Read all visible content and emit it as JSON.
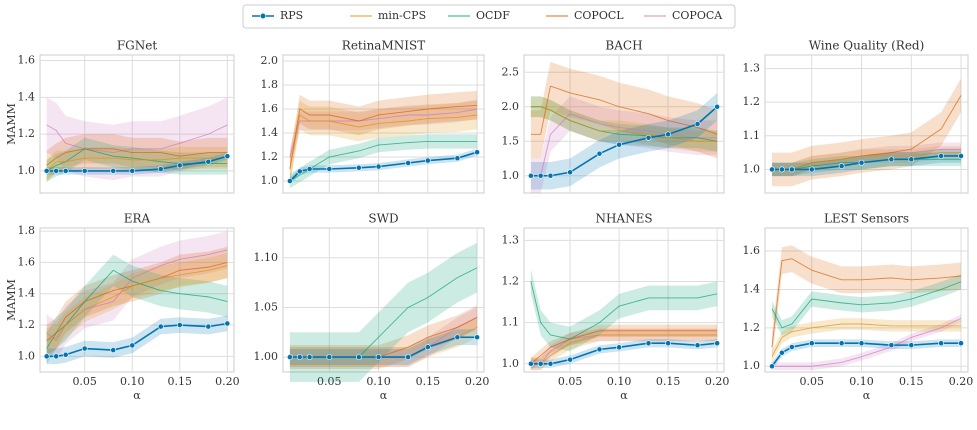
{
  "chart_data": [
    {
      "type": "line",
      "title": "FGNet",
      "ylabel": "MAMM",
      "x": [
        0.01,
        0.02,
        0.03,
        0.05,
        0.08,
        0.1,
        0.13,
        0.15,
        0.18,
        0.2
      ],
      "xlim": [
        0.003,
        0.207
      ],
      "xticks": [
        0.05,
        {
          "value": 0.1,
          "label": "0.10"
        },
        0.15,
        {
          "value": 0.2,
          "label": "0.20"
        }
      ],
      "ylim": [
        0.88,
        1.63
      ],
      "yticks": [
        {
          "value": 1,
          "label": "1.0"
        },
        1.2,
        1.4,
        1.6
      ],
      "grid": true,
      "series": [
        {
          "name": "RPS",
          "color": "#0173b2",
          "values": [
            1,
            1,
            1,
            1,
            1,
            1,
            1.01,
            1.03,
            1.05,
            1.08
          ],
          "error": 0.02
        },
        {
          "name": "min-CPS",
          "color": "#de8f05",
          "values": [
            1,
            1.05,
            1.05,
            1.07,
            1.07,
            1.06,
            1.06,
            1.07,
            1.07,
            1.07
          ],
          "error": 0.06
        },
        {
          "name": "OCDF",
          "color": "#029e73",
          "values": [
            1,
            1.03,
            1.05,
            1.12,
            1.08,
            1.07,
            1.05,
            1.04,
            1.04,
            1.04
          ],
          "error": 0.06
        },
        {
          "name": "COPOCL",
          "color": "#d55e00",
          "values": [
            1.03,
            1.07,
            1.1,
            1.12,
            1.12,
            1.1,
            1.1,
            1.08,
            1.1,
            1.1
          ],
          "error": 0.08
        },
        {
          "name": "COPOCA",
          "color": "#cc78bc",
          "values": [
            1.25,
            1.22,
            1.15,
            1.12,
            1.1,
            1.12,
            1.12,
            1.15,
            1.2,
            1.25
          ],
          "error": 0.15
        }
      ]
    },
    {
      "type": "line",
      "title": "RetinaMNIST",
      "x": [
        0.01,
        0.02,
        0.03,
        0.05,
        0.08,
        0.1,
        0.13,
        0.15,
        0.18,
        0.2
      ],
      "xlim": [
        0.003,
        0.207
      ],
      "xticks": [
        0.05,
        {
          "value": 0.1,
          "label": "0.10"
        },
        0.15,
        {
          "value": 0.2,
          "label": "0.20"
        }
      ],
      "ylim": [
        0.9,
        2.05
      ],
      "yticks": [
        {
          "value": 1,
          "label": "1.0"
        },
        1.2,
        1.4,
        1.6,
        1.8,
        {
          "value": 2,
          "label": "2.0"
        }
      ],
      "grid": true,
      "series": [
        {
          "name": "RPS",
          "color": "#0173b2",
          "values": [
            1,
            1.08,
            1.1,
            1.1,
            1.11,
            1.12,
            1.15,
            1.17,
            1.19,
            1.24
          ],
          "error": 0.03
        },
        {
          "name": "min-CPS",
          "color": "#de8f05",
          "values": [
            1.1,
            1.55,
            1.5,
            1.5,
            1.45,
            1.48,
            1.5,
            1.52,
            1.53,
            1.55
          ],
          "error": 0.12
        },
        {
          "name": "OCDF",
          "color": "#029e73",
          "values": [
            1,
            1.05,
            1.1,
            1.2,
            1.25,
            1.3,
            1.32,
            1.33,
            1.33,
            1.33
          ],
          "error": 0.06
        },
        {
          "name": "COPOCL",
          "color": "#d55e00",
          "values": [
            1.1,
            1.6,
            1.55,
            1.55,
            1.5,
            1.55,
            1.58,
            1.6,
            1.62,
            1.63
          ],
          "error": 0.12
        },
        {
          "name": "COPOCA",
          "color": "#cc78bc",
          "values": [
            1.2,
            1.5,
            1.5,
            1.5,
            1.5,
            1.52,
            1.55,
            1.55,
            1.57,
            1.6
          ],
          "error": 0.08
        }
      ]
    },
    {
      "type": "line",
      "title": "BACH",
      "x": [
        0.01,
        0.02,
        0.03,
        0.05,
        0.08,
        0.1,
        0.13,
        0.15,
        0.18,
        0.2
      ],
      "xlim": [
        0.003,
        0.207
      ],
      "xticks": [
        0.05,
        {
          "value": 0.1,
          "label": "0.10"
        },
        0.15,
        {
          "value": 0.2,
          "label": "0.20"
        }
      ],
      "ylim": [
        0.75,
        2.75
      ],
      "yticks": [
        {
          "value": 1,
          "label": "1.0"
        },
        1.5,
        {
          "value": 2,
          "label": "2.0"
        },
        2.5
      ],
      "grid": true,
      "series": [
        {
          "name": "RPS",
          "color": "#0173b2",
          "values": [
            1,
            1,
            1,
            1.05,
            1.32,
            1.45,
            1.55,
            1.6,
            1.75,
            2
          ],
          "error": 0.2
        },
        {
          "name": "min-CPS",
          "color": "#de8f05",
          "values": [
            2,
            2,
            1.95,
            1.8,
            1.65,
            1.65,
            1.6,
            1.55,
            1.5,
            1.5
          ],
          "error": 0.15
        },
        {
          "name": "OCDF",
          "color": "#029e73",
          "values": [
            2,
            2,
            1.95,
            1.8,
            1.65,
            1.6,
            1.58,
            1.55,
            1.55,
            1.5
          ],
          "error": 0.15
        },
        {
          "name": "COPOCL",
          "color": "#d55e00",
          "values": [
            1.6,
            1.6,
            2.3,
            2.2,
            2.1,
            2,
            1.9,
            1.8,
            1.7,
            1.6
          ],
          "error": 0.35
        },
        {
          "name": "COPOCA",
          "color": "#cc78bc",
          "values": [
            1,
            1,
            1.6,
            1.9,
            1.75,
            1.7,
            1.65,
            1.6,
            1.55,
            1.55
          ],
          "error": 0.25
        }
      ]
    },
    {
      "type": "line",
      "title": "Wine Quality (Red)",
      "x": [
        0.01,
        0.02,
        0.03,
        0.05,
        0.08,
        0.1,
        0.13,
        0.15,
        0.18,
        0.2
      ],
      "xlim": [
        0.003,
        0.207
      ],
      "xticks": [
        0.05,
        {
          "value": 0.1,
          "label": "0.10"
        },
        0.15,
        {
          "value": 0.2,
          "label": "0.20"
        }
      ],
      "ylim": [
        0.93,
        1.34
      ],
      "yticks": [
        {
          "value": 1,
          "label": "1.0"
        },
        1.1,
        1.2,
        1.3
      ],
      "grid": true,
      "series": [
        {
          "name": "RPS",
          "color": "#0173b2",
          "values": [
            1,
            1,
            1,
            1,
            1.01,
            1.02,
            1.03,
            1.03,
            1.04,
            1.04
          ],
          "error": 0.02
        },
        {
          "name": "min-CPS",
          "color": "#de8f05",
          "values": [
            1,
            1,
            1,
            1.02,
            1.03,
            1.04,
            1.04,
            1.04,
            1.05,
            1.05
          ],
          "error": 0.02
        },
        {
          "name": "OCDF",
          "color": "#029e73",
          "values": [
            1,
            1,
            1,
            1.01,
            1.02,
            1.02,
            1.03,
            1.03,
            1.03,
            1.03
          ],
          "error": 0.02
        },
        {
          "name": "COPOCL",
          "color": "#d55e00",
          "values": [
            1,
            1,
            1,
            1.02,
            1.03,
            1.04,
            1.05,
            1.06,
            1.12,
            1.22
          ],
          "error": 0.05
        },
        {
          "name": "COPOCA",
          "color": "#cc78bc",
          "values": [
            1,
            1,
            1,
            1.02,
            1.03,
            1.04,
            1.05,
            1.05,
            1.06,
            1.06
          ],
          "error": 0.02
        }
      ]
    },
    {
      "type": "line",
      "title": "ERA",
      "ylabel": "MAMM",
      "xlabel": "α",
      "x": [
        0.01,
        0.02,
        0.03,
        0.05,
        0.08,
        0.1,
        0.13,
        0.15,
        0.18,
        0.2
      ],
      "xlim": [
        0.003,
        0.207
      ],
      "xticks": [
        0.05,
        {
          "value": 0.1,
          "label": "0.10"
        },
        0.15,
        {
          "value": 0.2,
          "label": "0.20"
        }
      ],
      "ylim": [
        0.9,
        1.82
      ],
      "yticks": [
        {
          "value": 1,
          "label": "1.0"
        },
        1.2,
        1.4,
        1.6,
        1.8
      ],
      "grid": true,
      "series": [
        {
          "name": "RPS",
          "color": "#0173b2",
          "values": [
            1,
            1,
            1.01,
            1.05,
            1.04,
            1.07,
            1.19,
            1.2,
            1.19,
            1.21
          ],
          "error": 0.05
        },
        {
          "name": "min-CPS",
          "color": "#de8f05",
          "values": [
            1.1,
            1.12,
            1.2,
            1.3,
            1.38,
            1.45,
            1.5,
            1.52,
            1.55,
            1.58
          ],
          "error": 0.08
        },
        {
          "name": "OCDF",
          "color": "#029e73",
          "values": [
            1.05,
            1.15,
            1.2,
            1.35,
            1.55,
            1.48,
            1.42,
            1.4,
            1.38,
            1.35
          ],
          "error": 0.1
        },
        {
          "name": "COPOCL",
          "color": "#d55e00",
          "values": [
            1.1,
            1.15,
            1.25,
            1.35,
            1.42,
            1.45,
            1.5,
            1.55,
            1.57,
            1.6
          ],
          "error": 0.1
        },
        {
          "name": "COPOCA",
          "color": "#cc78bc",
          "values": [
            1.15,
            1.1,
            1.2,
            1.3,
            1.35,
            1.5,
            1.58,
            1.62,
            1.65,
            1.68
          ],
          "error": 0.12
        }
      ]
    },
    {
      "type": "line",
      "title": "SWD",
      "xlabel": "α",
      "x": [
        0.01,
        0.02,
        0.03,
        0.05,
        0.08,
        0.1,
        0.13,
        0.15,
        0.18,
        0.2
      ],
      "xlim": [
        0.003,
        0.207
      ],
      "xticks": [
        0.05,
        {
          "value": 0.1,
          "label": "0.10"
        },
        0.15,
        {
          "value": 0.2,
          "label": "0.20"
        }
      ],
      "ylim": [
        0.985,
        1.13
      ],
      "yticks": [
        {
          "value": 1,
          "label": "1.00"
        },
        1.05,
        {
          "value": 1.1,
          "label": "1.10"
        }
      ],
      "grid": true,
      "series": [
        {
          "name": "RPS",
          "color": "#0173b2",
          "values": [
            1,
            1,
            1,
            1,
            1,
            1,
            1,
            1.01,
            1.02,
            1.02
          ],
          "error": 0.008
        },
        {
          "name": "min-CPS",
          "color": "#de8f05",
          "values": [
            1,
            1,
            1,
            1,
            1,
            1,
            1,
            1.01,
            1.02,
            1.03
          ],
          "error": 0.01
        },
        {
          "name": "OCDF",
          "color": "#029e73",
          "values": [
            1,
            1,
            1,
            1,
            1,
            1.02,
            1.05,
            1.06,
            1.08,
            1.09
          ],
          "error": 0.025
        },
        {
          "name": "COPOCL",
          "color": "#d55e00",
          "values": [
            1,
            1,
            1,
            1,
            1,
            1,
            1.01,
            1.02,
            1.03,
            1.04
          ],
          "error": 0.012
        },
        {
          "name": "COPOCA",
          "color": "#cc78bc",
          "values": [
            1,
            1,
            1,
            1,
            1,
            1,
            1,
            1.01,
            1.03,
            1.04
          ],
          "error": 0.01
        }
      ]
    },
    {
      "type": "line",
      "title": "NHANES",
      "xlabel": "α",
      "x": [
        0.01,
        0.02,
        0.03,
        0.05,
        0.08,
        0.1,
        0.13,
        0.15,
        0.18,
        0.2
      ],
      "xlim": [
        0.003,
        0.207
      ],
      "xticks": [
        0.05,
        {
          "value": 0.1,
          "label": "0.10"
        },
        0.15,
        {
          "value": 0.2,
          "label": "0.20"
        }
      ],
      "ylim": [
        0.98,
        1.33
      ],
      "yticks": [
        {
          "value": 1,
          "label": "1.0"
        },
        1.1,
        1.2,
        1.3
      ],
      "grid": true,
      "series": [
        {
          "name": "RPS",
          "color": "#0173b2",
          "values": [
            1,
            1,
            1,
            1.01,
            1.035,
            1.04,
            1.05,
            1.05,
            1.045,
            1.05
          ],
          "error": 0.01
        },
        {
          "name": "min-CPS",
          "color": "#de8f05",
          "values": [
            1,
            1,
            1.02,
            1.05,
            1.07,
            1.07,
            1.07,
            1.07,
            1.07,
            1.07
          ],
          "error": 0.015
        },
        {
          "name": "OCDF",
          "color": "#029e73",
          "values": [
            1.2,
            1.1,
            1.07,
            1.06,
            1.1,
            1.14,
            1.16,
            1.16,
            1.16,
            1.17
          ],
          "error": 0.03
        },
        {
          "name": "COPOCL",
          "color": "#d55e00",
          "values": [
            1,
            1.02,
            1.04,
            1.06,
            1.08,
            1.08,
            1.08,
            1.08,
            1.08,
            1.08
          ],
          "error": 0.015
        },
        {
          "name": "COPOCA",
          "color": "#cc78bc",
          "values": [
            1,
            1,
            1.03,
            1.06,
            1.07,
            1.07,
            1.07,
            1.07,
            1.07,
            1.07
          ],
          "error": 0.015
        }
      ]
    },
    {
      "type": "line",
      "title": "LEST Sensors",
      "xlabel": "α",
      "x": [
        0.01,
        0.02,
        0.03,
        0.05,
        0.08,
        0.1,
        0.13,
        0.15,
        0.18,
        0.2
      ],
      "xlim": [
        0.003,
        0.207
      ],
      "xticks": [
        0.05,
        {
          "value": 0.1,
          "label": "0.10"
        },
        0.15,
        {
          "value": 0.2,
          "label": "0.20"
        }
      ],
      "ylim": [
        0.97,
        1.72
      ],
      "yticks": [
        {
          "value": 1,
          "label": "1.0"
        },
        1.2,
        1.4,
        1.6
      ],
      "grid": true,
      "series": [
        {
          "name": "RPS",
          "color": "#0173b2",
          "values": [
            1,
            1.07,
            1.1,
            1.12,
            1.12,
            1.12,
            1.11,
            1.11,
            1.12,
            1.12
          ],
          "error": 0.02
        },
        {
          "name": "min-CPS",
          "color": "#de8f05",
          "values": [
            1.05,
            1.15,
            1.18,
            1.2,
            1.22,
            1.22,
            1.21,
            1.21,
            1.21,
            1.21
          ],
          "error": 0.03
        },
        {
          "name": "OCDF",
          "color": "#029e73",
          "values": [
            1.3,
            1.2,
            1.22,
            1.35,
            1.33,
            1.32,
            1.33,
            1.35,
            1.4,
            1.44
          ],
          "error": 0.04
        },
        {
          "name": "COPOCL",
          "color": "#d55e00",
          "values": [
            1.1,
            1.55,
            1.56,
            1.5,
            1.45,
            1.45,
            1.46,
            1.45,
            1.46,
            1.47
          ],
          "error": 0.07
        },
        {
          "name": "COPOCA",
          "color": "#cc78bc",
          "values": [
            1,
            1,
            1,
            1,
            1.02,
            1.05,
            1.1,
            1.15,
            1.2,
            1.25
          ],
          "error": 0.02
        }
      ]
    }
  ]
}
